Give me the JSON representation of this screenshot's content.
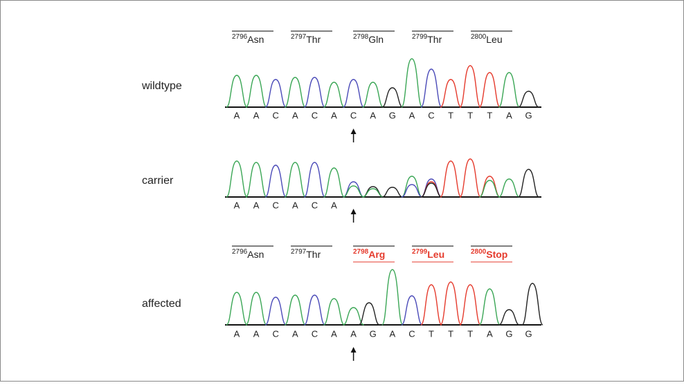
{
  "rows": [
    {
      "label": "wildtype",
      "codons": [
        {
          "number": "2796",
          "residue": "Asn"
        },
        {
          "number": "2797",
          "residue": "Thr"
        },
        {
          "number": "2798",
          "residue": "Gln"
        },
        {
          "number": "2799",
          "residue": "Thr"
        },
        {
          "number": "2800",
          "residue": "Leu"
        }
      ],
      "bases": [
        "A",
        "A",
        "C",
        "A",
        "C",
        "A",
        "C",
        "A",
        "G",
        "A",
        "C",
        "T",
        "T",
        "T",
        "A",
        "G"
      ]
    },
    {
      "label": "carrier",
      "bases": [
        "A",
        "A",
        "C",
        "A",
        "C",
        "A"
      ]
    },
    {
      "label": "affected",
      "codons": [
        {
          "number": "2796",
          "residue": "Asn"
        },
        {
          "number": "2797",
          "residue": "Thr"
        },
        {
          "number": "2798",
          "residue": "Arg"
        },
        {
          "number": "2799",
          "residue": "Leu"
        },
        {
          "number": "2800",
          "residue": "Stop"
        }
      ],
      "bases": [
        "A",
        "A",
        "C",
        "A",
        "C",
        "A",
        "A",
        "G",
        "A",
        "C",
        "T",
        "T",
        "T",
        "A",
        "G",
        "G"
      ]
    }
  ]
}
